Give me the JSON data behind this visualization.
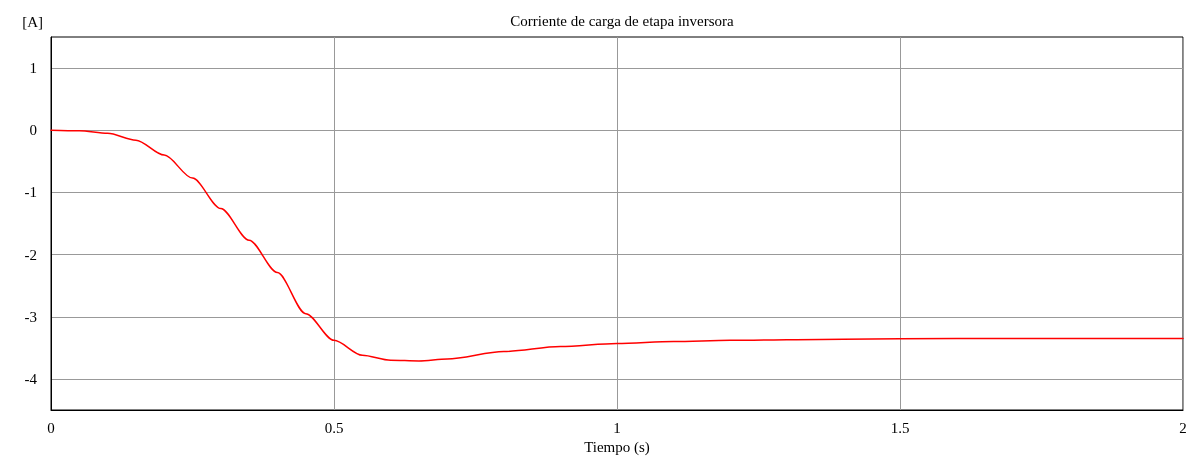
{
  "chart_data": {
    "type": "line",
    "title": "Corriente de carga de etapa inversora",
    "xlabel": "Tiempo (s)",
    "ylabel": "[A]",
    "x": [
      0,
      0.05,
      0.1,
      0.15,
      0.2,
      0.25,
      0.3,
      0.35,
      0.4,
      0.45,
      0.5,
      0.55,
      0.6,
      0.65,
      0.7,
      0.8,
      0.9,
      1,
      1.1,
      1.2,
      1.4,
      1.6,
      1.8,
      2
    ],
    "series": [
      {
        "color": "#ff0000",
        "values": [
          0,
          -0.01,
          -0.05,
          -0.16,
          -0.4,
          -0.77,
          -1.26,
          -1.77,
          -2.29,
          -2.95,
          -3.38,
          -3.62,
          -3.7,
          -3.71,
          -3.68,
          -3.56,
          -3.48,
          -3.43,
          -3.4,
          -3.38,
          -3.36,
          -3.35,
          -3.35,
          -3.35
        ]
      }
    ],
    "xlim": [
      0,
      2
    ],
    "xticks": [
      0,
      0.5,
      1,
      1.5,
      2
    ],
    "ylim": [
      -4.5,
      1.5
    ],
    "yticks": [
      -4,
      -3,
      -2,
      -1,
      0,
      1
    ],
    "grid": true,
    "marker": "none",
    "line_style": "solid"
  }
}
